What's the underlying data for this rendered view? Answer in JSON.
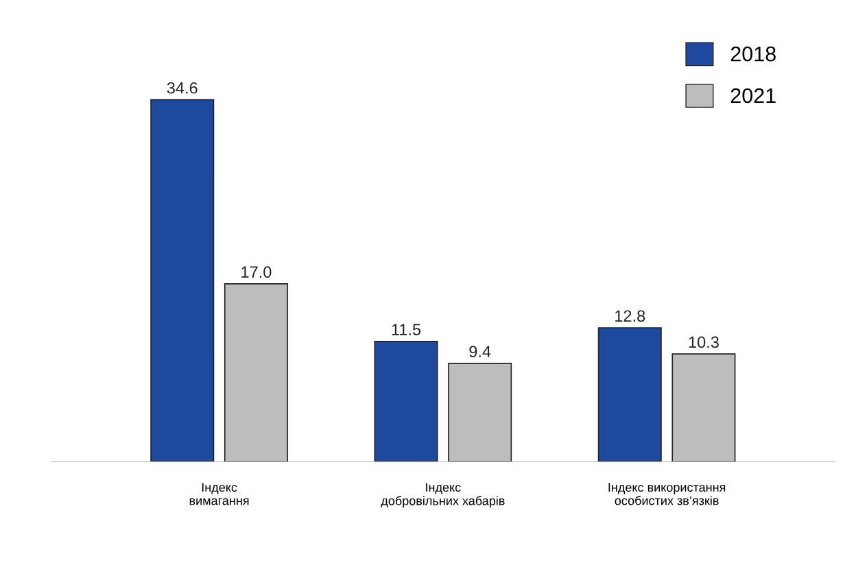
{
  "chart_data": {
    "type": "bar",
    "categories": [
      "Індекс\nвимагання",
      "Індекс\nдобровільних хабарів",
      "Індекс використання\nособистих зв’язків"
    ],
    "series": [
      {
        "name": "2018",
        "color": "#1d4a9e",
        "values": [
          34.6,
          11.5,
          12.8
        ],
        "value_labels": [
          "34.6",
          "11.5",
          "12.8"
        ]
      },
      {
        "name": "2021",
        "color": "#bdbdbd",
        "values": [
          17.0,
          9.4,
          10.3
        ],
        "value_labels": [
          "17.0",
          "9.4",
          "10.3"
        ]
      }
    ],
    "legend": "top right",
    "grid": false
  }
}
